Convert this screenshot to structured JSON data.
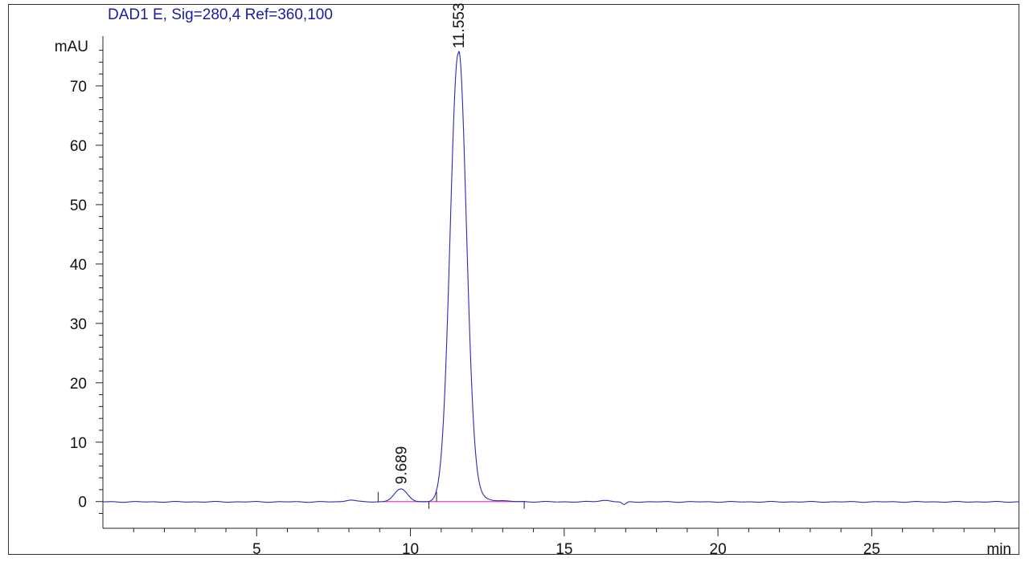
{
  "chart_data": {
    "type": "line",
    "title": "DAD1 E, Sig=280,4 Ref=360,100",
    "ylabel": "mAU",
    "xlabel": "min",
    "xlim": [
      0,
      29.8
    ],
    "ylim": [
      -4.5,
      80
    ],
    "x_ticks": [
      5,
      10,
      15,
      20,
      25
    ],
    "y_ticks": [
      0,
      10,
      20,
      30,
      40,
      50,
      60,
      70
    ],
    "grid": false,
    "series": [
      {
        "color": "#2a2ab8",
        "peaks": [
          {
            "center": 8.05,
            "height": 0.35,
            "width": 0.15
          },
          {
            "center": 9.689,
            "height": 2.1,
            "width": 0.22
          },
          {
            "center": 11.553,
            "height": 75.5,
            "width": 0.26
          },
          {
            "center": 16.3,
            "height": 0.25,
            "width": 0.2
          },
          {
            "center": 16.95,
            "height": -0.5,
            "width": 0.07
          }
        ],
        "tail": {
          "start": 11.553,
          "tau": 0.45,
          "amplitude": 4.0
        }
      }
    ],
    "baseline": {
      "color": "#e040c0",
      "from": 9.1,
      "to": 13.7,
      "y": 0
    },
    "peak_labels": [
      {
        "x": 9.689,
        "y": 2.1,
        "text": "9.689"
      },
      {
        "x": 11.553,
        "y": 75.5,
        "text": "11.553"
      }
    ],
    "integration_marks": [
      8.95,
      10.6,
      10.85,
      13.7
    ]
  }
}
